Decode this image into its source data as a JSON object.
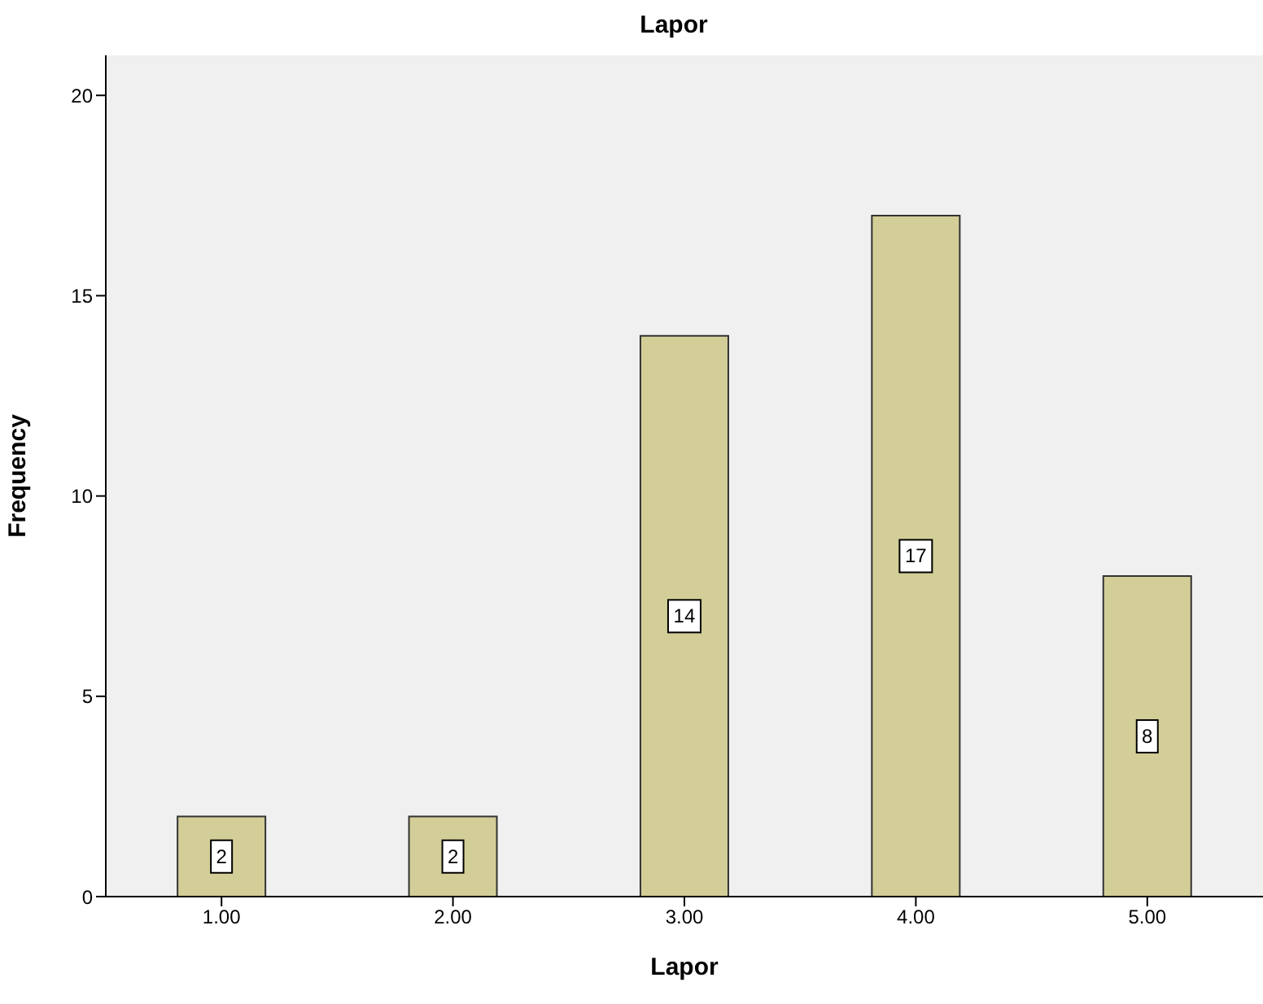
{
  "chart_data": {
    "type": "bar",
    "title": "Lapor",
    "xlabel": "Lapor",
    "ylabel": "Frequency",
    "categories": [
      "1.00",
      "2.00",
      "3.00",
      "4.00",
      "5.00"
    ],
    "values": [
      2,
      2,
      14,
      17,
      8
    ],
    "color": "#d3ce98",
    "ylim": [
      0,
      21
    ],
    "yticks": [
      0,
      5,
      10,
      15,
      20
    ],
    "grid": false,
    "data_labels": true
  }
}
